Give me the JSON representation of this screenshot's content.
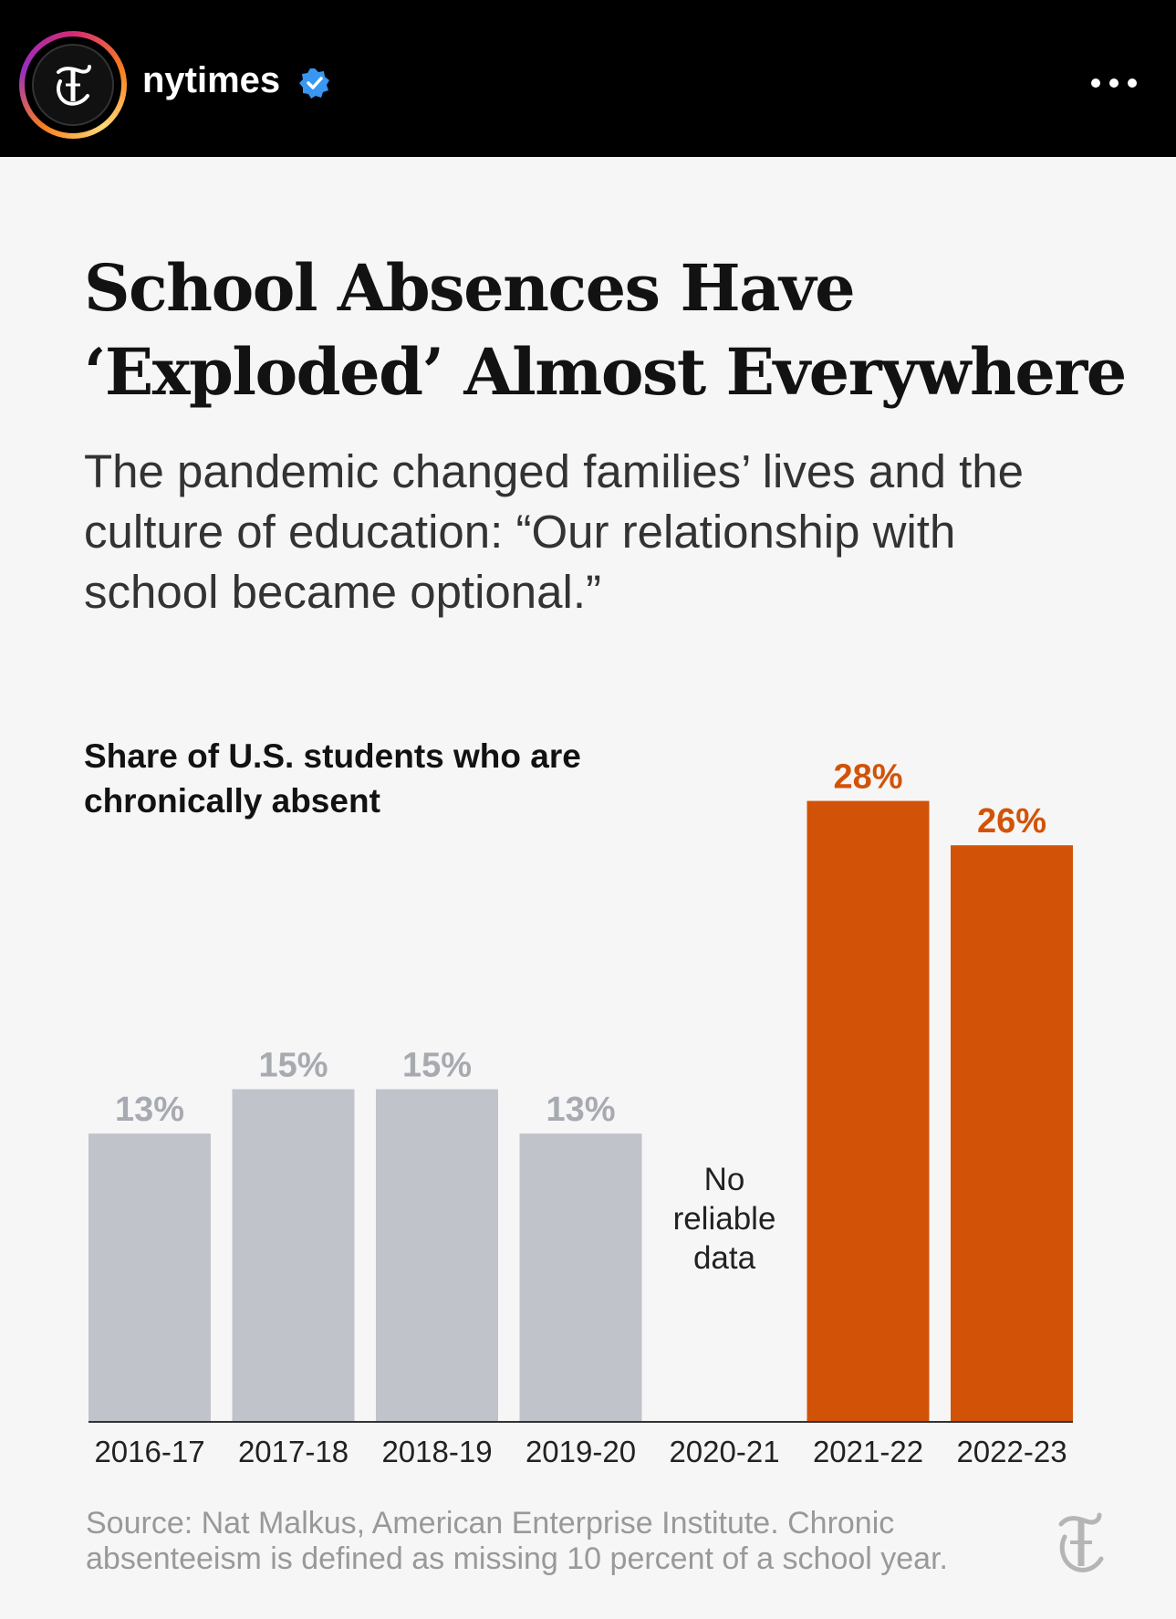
{
  "header": {
    "account_name": "nytimes",
    "verified": true,
    "avatar_icon": "nyt-t-logo",
    "more_icon": "more-horizontal-icon"
  },
  "post": {
    "title": "School Absences Have ‘Exploded’ Almost Everywhere",
    "subtitle": "The pandemic changed families’ lives and the culture of education: “Our relationship with school became optional.”",
    "source": "Source: Nat Malkus, American Enterprise Institute. Chronic absenteeism is defined as missing 10 percent of a school year."
  },
  "colors": {
    "gray_bar": "#c0c3c9",
    "orange_bar": "#d25307",
    "gray_label": "#a7aab0",
    "orange_label": "#d25307"
  },
  "chart_data": {
    "type": "bar",
    "title": "Share of U.S. students who are chronically absent",
    "categories": [
      "2016-17",
      "2017-18",
      "2018-19",
      "2019-20",
      "2020-21",
      "2021-22",
      "2022-23"
    ],
    "values": [
      13,
      15,
      15,
      13,
      null,
      28,
      26
    ],
    "labels": [
      "13%",
      "15%",
      "15%",
      "13%",
      "",
      "28%",
      "26%"
    ],
    "highlight": [
      false,
      false,
      false,
      false,
      false,
      true,
      true
    ],
    "annotations": [
      {
        "category": "2020-21",
        "text": [
          "No",
          "reliable",
          "data"
        ]
      }
    ],
    "ylim": [
      0,
      28
    ],
    "grid": false,
    "xlabel": "",
    "ylabel": ""
  }
}
